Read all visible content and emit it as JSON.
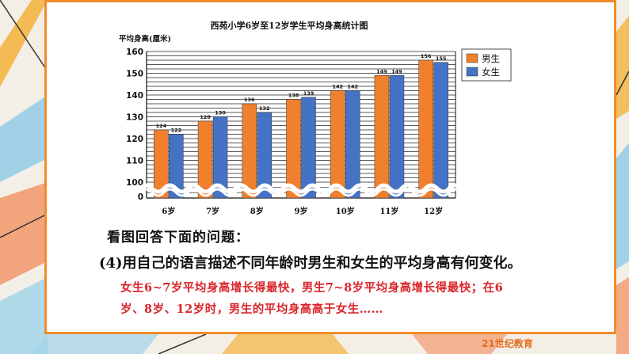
{
  "chart_data": {
    "type": "bar",
    "title": "西苑小学6岁至12岁学生平均身高统计图",
    "ylabel": "平均身高(厘米)",
    "xlabel": "",
    "categories": [
      "6岁",
      "7岁",
      "8岁",
      "9岁",
      "10岁",
      "11岁",
      "12岁"
    ],
    "series": [
      {
        "name": "男生",
        "color": "#f07f2e",
        "values": [
          124,
          128,
          136,
          138,
          142,
          149,
          156
        ]
      },
      {
        "name": "女生",
        "color": "#4472c4",
        "values": [
          122,
          130,
          132,
          139,
          142,
          149,
          155
        ]
      }
    ],
    "yticks": [
      0,
      100,
      110,
      120,
      130,
      140,
      150,
      160
    ],
    "axis_break": [
      0,
      100
    ],
    "ylim": [
      100,
      160
    ],
    "grid": true,
    "legend_position": "top-right"
  },
  "question_title": "看图回答下面的问题：",
  "question_4": "(4)用自己的语言描述不同年龄时男生和女生的平均身高有何变化。",
  "answer_lines": [
    "女生6~7岁平均身高增长得最快，男生7~8岁平均身高增长得最快；在6",
    "岁、8岁、12岁时，男生的平均身高高于女生……"
  ],
  "footer_logo_text": "21世纪教育"
}
